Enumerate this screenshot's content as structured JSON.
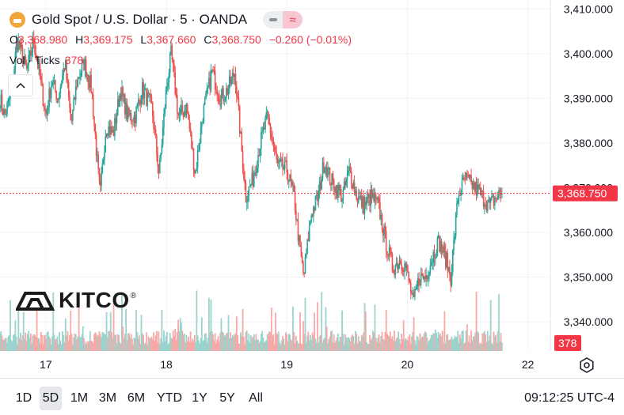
{
  "header": {
    "title": "Gold Spot / U.S. Dollar · 5 · OANDA",
    "pill_right_glyph": "≈"
  },
  "ohlc": {
    "o_key": "O",
    "o": "3,368.980",
    "h_key": "H",
    "h": "3,369.175",
    "l_key": "L",
    "l": "3,367.660",
    "c_key": "C",
    "c": "3,368.750",
    "change": "−0.260 (−0.01%)"
  },
  "volume": {
    "label": "Vol · Ticks",
    "value": "378"
  },
  "watermark": {
    "brand": "KITCO",
    "reg": "®"
  },
  "colors": {
    "up": "#26a69a",
    "down": "#ef5350",
    "price_line": "#f23645",
    "text": "#131722"
  },
  "ranges": [
    "1D",
    "5D",
    "1M",
    "3M",
    "6M",
    "YTD",
    "1Y",
    "5Y",
    "All"
  ],
  "active_range": "5D",
  "clock": "09:12:25 UTC-4",
  "chart_data": {
    "type": "candlestick",
    "y_axis": {
      "ticks": [
        "3,410.000",
        "3,400.000",
        "3,390.000",
        "3,380.000",
        "3,370.000",
        "3,360.000",
        "3,350.000",
        "3,340.000"
      ],
      "values": [
        3410,
        3400,
        3390,
        3380,
        3370,
        3360,
        3350,
        3340
      ],
      "range": [
        3333.5,
        3412
      ]
    },
    "x_axis": {
      "ticks": [
        "17",
        "18",
        "19",
        "20",
        "22"
      ],
      "positions_day": [
        1,
        2,
        3,
        4,
        5
      ]
    },
    "x_range_day": [
      0.62,
      5.18
    ],
    "current_price": {
      "value": 3368.75,
      "label": "3,368.750"
    },
    "current_volume": {
      "value": 378,
      "label": "378"
    },
    "price_path": [
      [
        0.62,
        3390
      ],
      [
        0.66,
        3386
      ],
      [
        0.72,
        3392
      ],
      [
        0.76,
        3403
      ],
      [
        0.8,
        3400
      ],
      [
        0.84,
        3396
      ],
      [
        0.9,
        3403
      ],
      [
        0.95,
        3395
      ],
      [
        1.0,
        3386
      ],
      [
        1.05,
        3394
      ],
      [
        1.1,
        3390
      ],
      [
        1.16,
        3398
      ],
      [
        1.21,
        3384
      ],
      [
        1.26,
        3394
      ],
      [
        1.32,
        3398
      ],
      [
        1.38,
        3392
      ],
      [
        1.45,
        3368
      ],
      [
        1.5,
        3384
      ],
      [
        1.56,
        3382
      ],
      [
        1.62,
        3392
      ],
      [
        1.68,
        3386
      ],
      [
        1.74,
        3386
      ],
      [
        1.8,
        3392
      ],
      [
        1.88,
        3388
      ],
      [
        1.94,
        3373
      ],
      [
        2.0,
        3392
      ],
      [
        2.04,
        3400
      ],
      [
        2.1,
        3386
      ],
      [
        2.17,
        3388
      ],
      [
        2.24,
        3373
      ],
      [
        2.3,
        3386
      ],
      [
        2.38,
        3396
      ],
      [
        2.45,
        3390
      ],
      [
        2.51,
        3392
      ],
      [
        2.57,
        3396
      ],
      [
        2.62,
        3380
      ],
      [
        2.66,
        3368
      ],
      [
        2.72,
        3372
      ],
      [
        2.78,
        3380
      ],
      [
        2.84,
        3386
      ],
      [
        2.92,
        3375
      ],
      [
        3.0,
        3374
      ],
      [
        3.06,
        3368
      ],
      [
        3.1,
        3358
      ],
      [
        3.14,
        3350
      ],
      [
        3.2,
        3364
      ],
      [
        3.26,
        3368
      ],
      [
        3.31,
        3376
      ],
      [
        3.36,
        3372
      ],
      [
        3.41,
        3370
      ],
      [
        3.46,
        3368
      ],
      [
        3.52,
        3374
      ],
      [
        3.58,
        3368
      ],
      [
        3.64,
        3366
      ],
      [
        3.7,
        3368
      ],
      [
        3.76,
        3366
      ],
      [
        3.82,
        3358
      ],
      [
        3.88,
        3352
      ],
      [
        3.94,
        3354
      ],
      [
        3.99,
        3352
      ],
      [
        4.05,
        3344
      ],
      [
        4.1,
        3350
      ],
      [
        4.15,
        3350
      ],
      [
        4.2,
        3354
      ],
      [
        4.26,
        3358
      ],
      [
        4.32,
        3354
      ],
      [
        4.36,
        3350
      ],
      [
        4.42,
        3368
      ],
      [
        4.48,
        3372
      ],
      [
        4.56,
        3370
      ],
      [
        4.62,
        3368
      ],
      [
        4.68,
        3366
      ],
      [
        4.74,
        3368
      ],
      [
        4.78,
        3369
      ],
      [
        4.79,
        3368.75
      ]
    ]
  }
}
